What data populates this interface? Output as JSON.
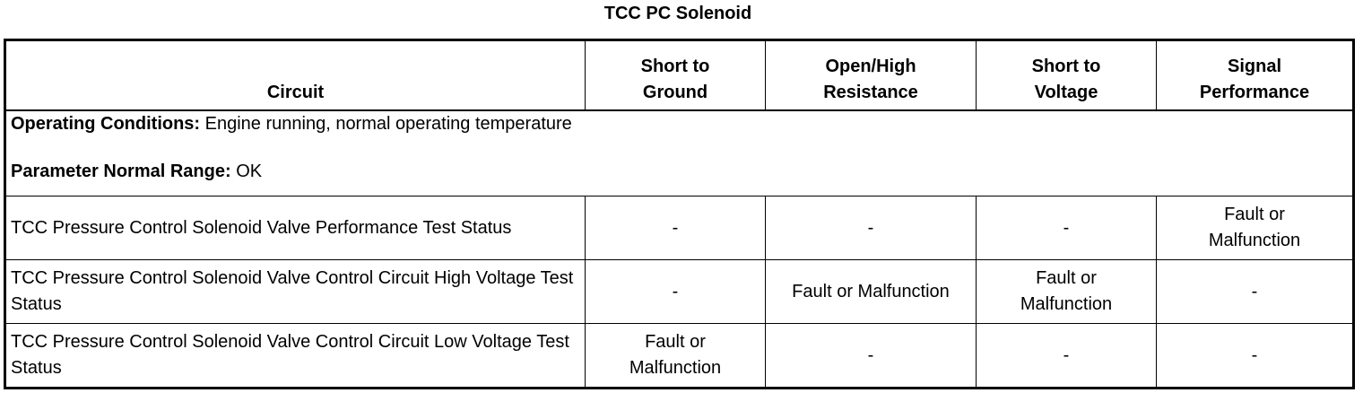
{
  "title": "TCC PC Solenoid",
  "headers": [
    "Circuit",
    "Short to Ground",
    "Open/High Resistance",
    "Short to Voltage",
    "Signal Performance"
  ],
  "conditions": {
    "operating_label": "Operating Conditions:",
    "operating_value": " Engine running, normal operating temperature",
    "range_label": "Parameter Normal Range:",
    "range_value": " OK"
  },
  "rows": [
    {
      "circuit": "TCC Pressure Control Solenoid Valve Performance Test Status",
      "cells": [
        "-",
        "-",
        "-",
        "Fault or Malfunction"
      ]
    },
    {
      "circuit": "TCC Pressure Control Solenoid Valve Control Circuit High Voltage Test Status",
      "cells": [
        "-",
        "Fault or Malfunction",
        "Fault or Malfunction",
        "-"
      ]
    },
    {
      "circuit": "TCC Pressure Control Solenoid Valve Control Circuit Low Voltage Test Status",
      "cells": [
        "Fault or Malfunction",
        "-",
        "-",
        "-"
      ]
    }
  ]
}
